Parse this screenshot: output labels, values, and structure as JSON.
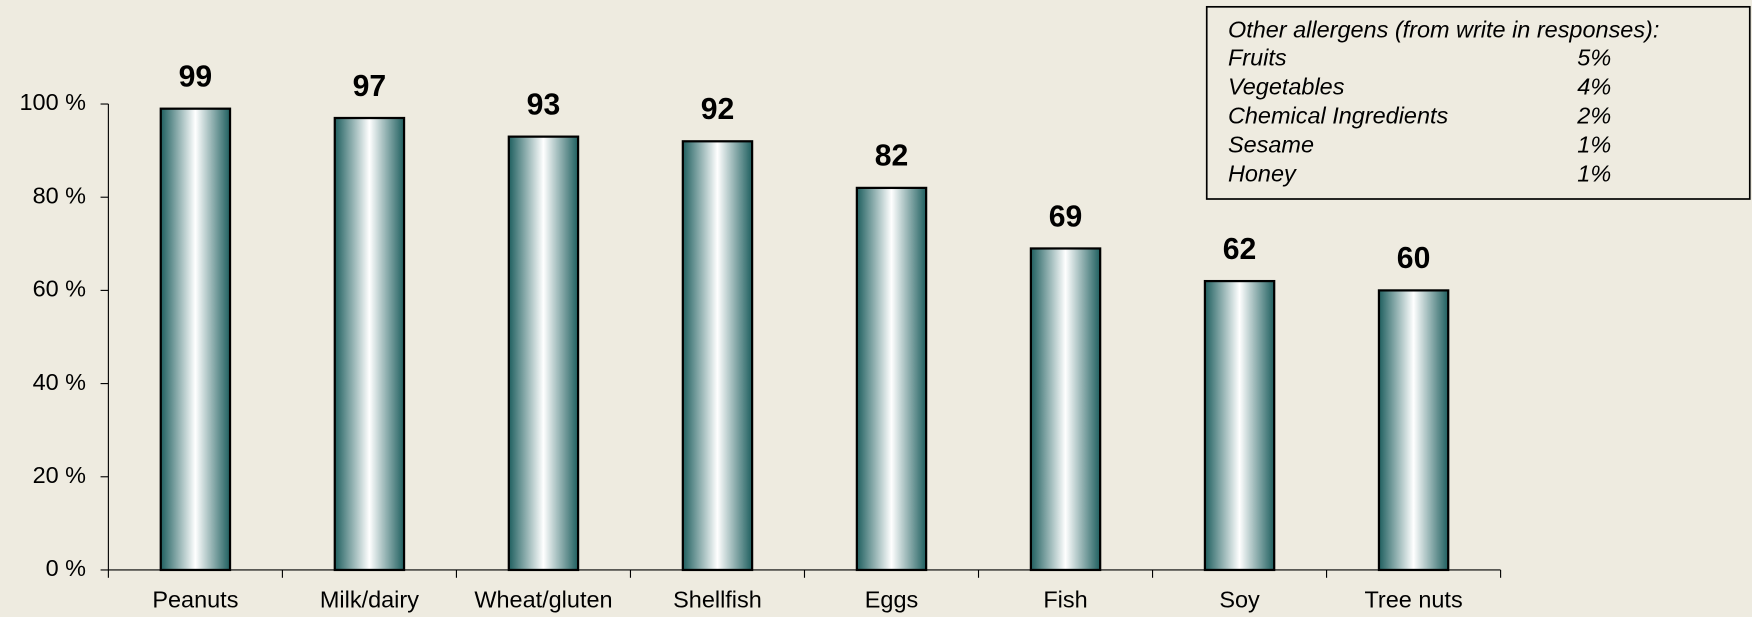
{
  "chart_data": {
    "type": "bar",
    "categories": [
      "Peanuts",
      "Milk/dairy",
      "Wheat/gluten",
      "Shellfish",
      "Eggs",
      "Fish",
      "Soy",
      "Tree nuts"
    ],
    "values": [
      99,
      97,
      93,
      92,
      82,
      69,
      62,
      60
    ],
    "color": "#1f5f5f",
    "ylim": [
      0,
      100
    ],
    "yticks": [
      {
        "value": 0,
        "label": "0 %"
      },
      {
        "value": 20,
        "label": "20 %"
      },
      {
        "value": 40,
        "label": "40 %"
      },
      {
        "value": 60,
        "label": "60 %"
      },
      {
        "value": 80,
        "label": "80 %"
      },
      {
        "value": 100,
        "label": "100 %"
      }
    ],
    "grid": false,
    "annotation": {
      "title": "Other allergens (from write in responses):",
      "rows": [
        [
          "Fruits",
          "5%"
        ],
        [
          "Vegetables",
          "4%"
        ],
        [
          "Chemical Ingredients",
          "2%"
        ],
        [
          "Sesame",
          "1%"
        ],
        [
          "Honey",
          "1%"
        ]
      ]
    }
  }
}
